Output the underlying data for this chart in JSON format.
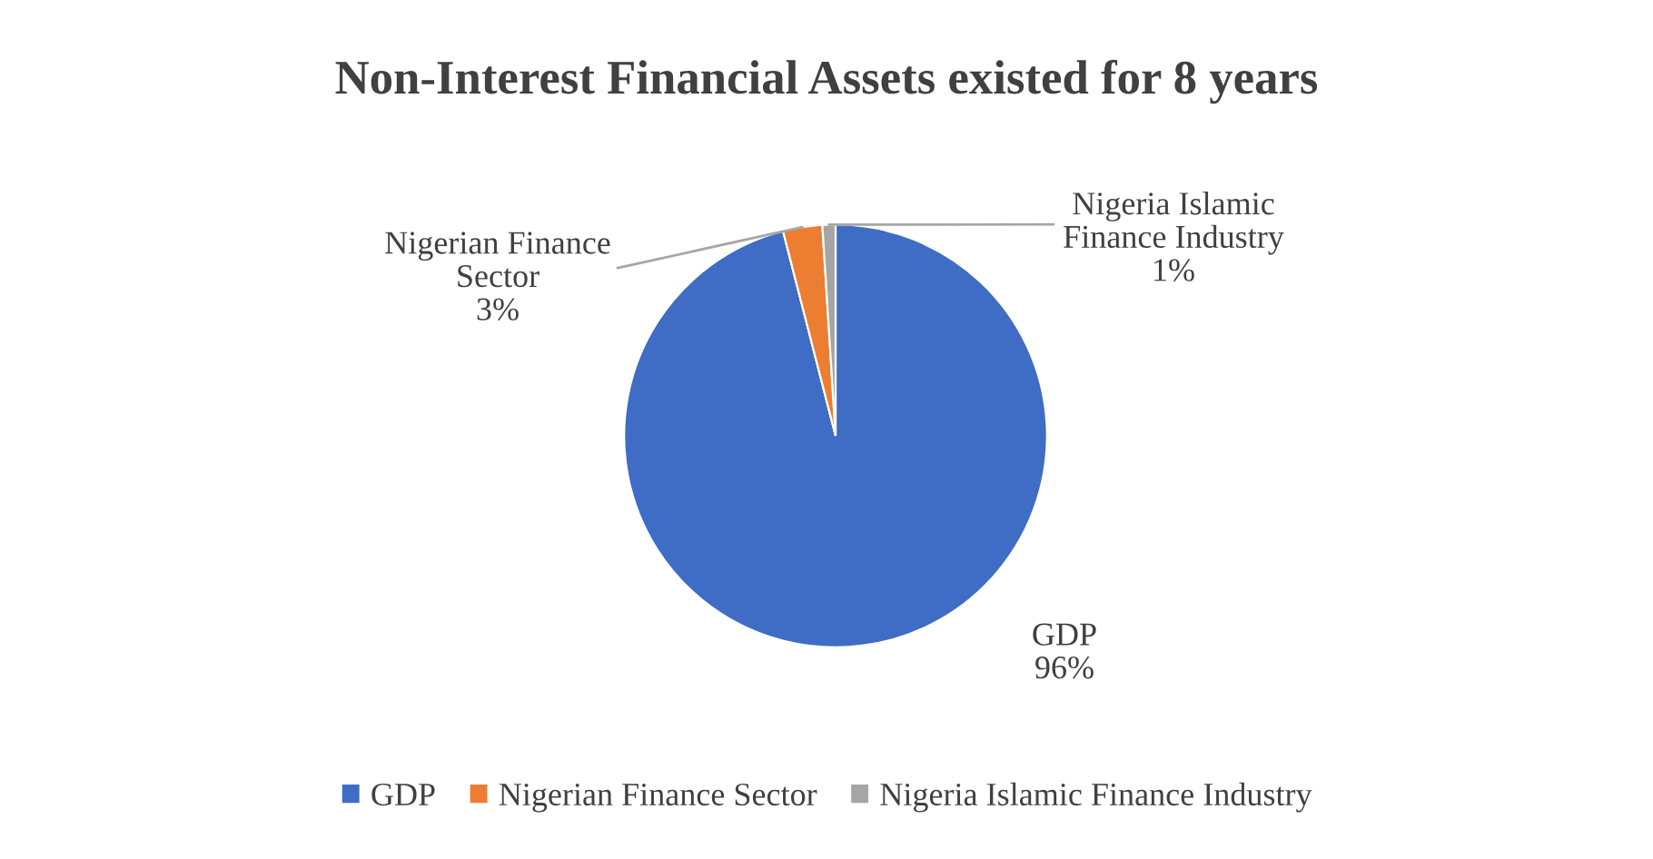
{
  "chart_data": {
    "type": "pie",
    "title": "Non-Interest Financial Assets existed for 8 years",
    "categories": [
      "GDP",
      "Nigerian Finance Sector",
      "Nigeria Islamic Finance Industry"
    ],
    "values": [
      96,
      3,
      1
    ],
    "value_labels": [
      "96%",
      "3%",
      "1%"
    ],
    "colors": [
      "#3f6cc4",
      "#ed7d31",
      "#a5a5a5"
    ],
    "data_labels": true,
    "legend": "bottom"
  }
}
